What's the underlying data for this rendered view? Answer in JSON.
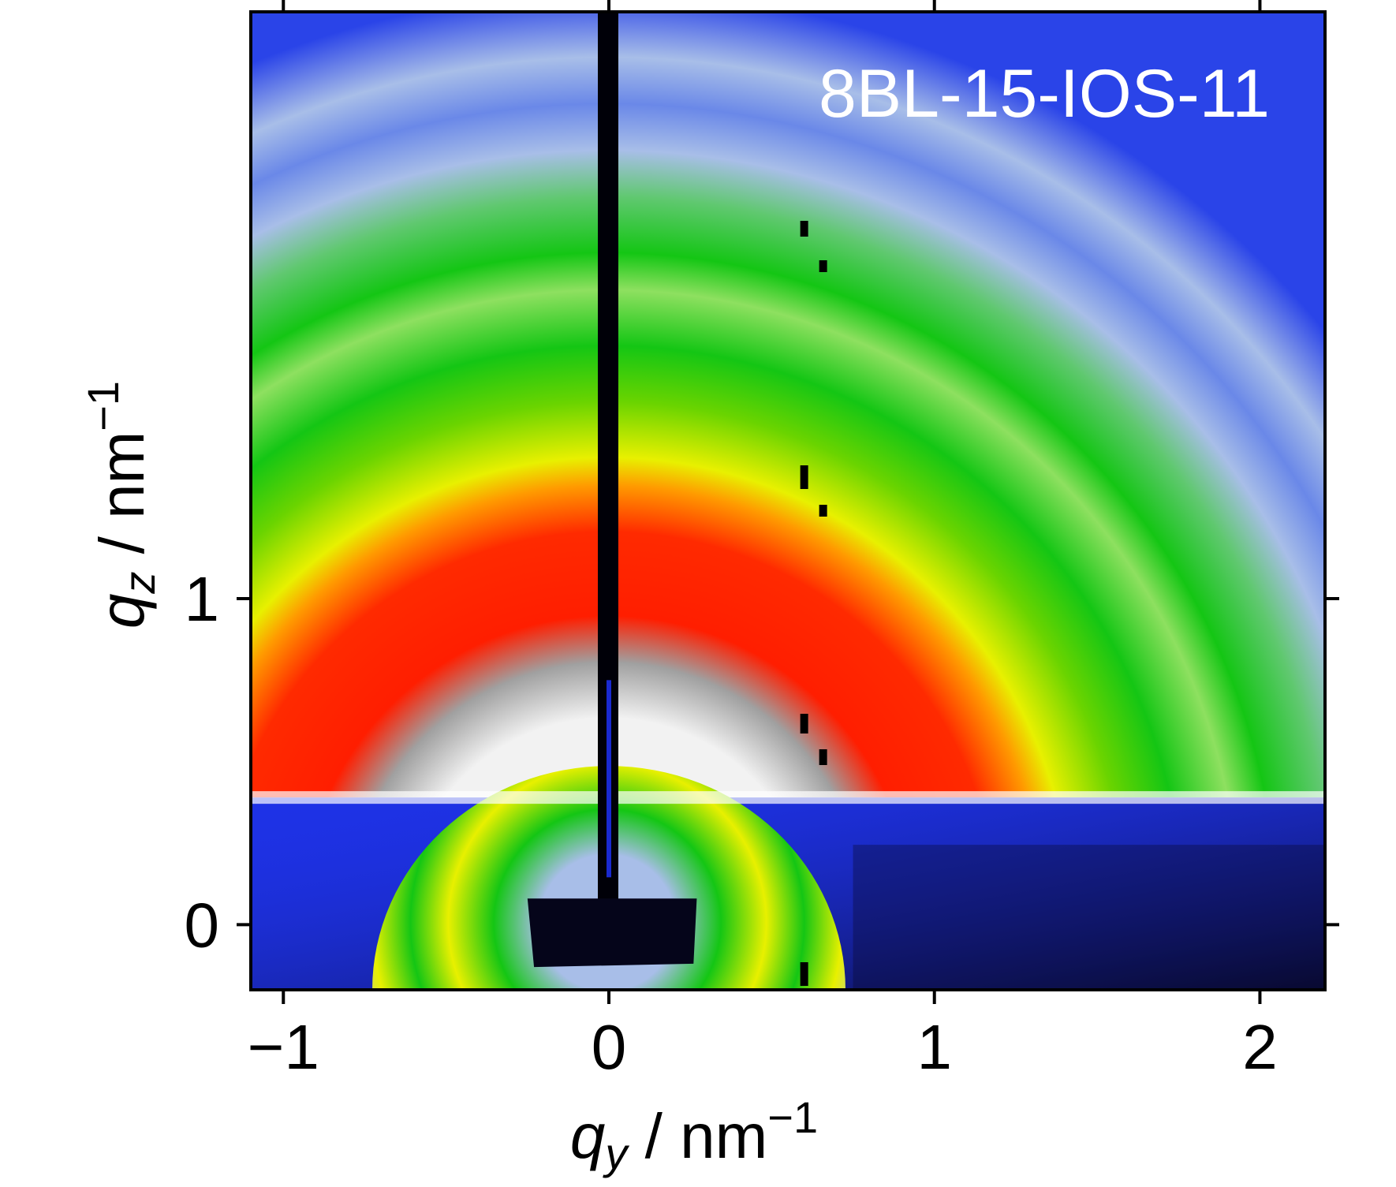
{
  "chart_data": {
    "type": "heatmap",
    "title": "",
    "sample_label": "8BL-15-IOS-11",
    "xlabel": {
      "var": "q",
      "sub": "y",
      "unit_sep": " / ",
      "unit": "nm",
      "exp": "−1"
    },
    "ylabel": {
      "var": "q",
      "sub": "z",
      "unit_sep": " / ",
      "unit": "nm",
      "exp": "−1"
    },
    "xlim": [
      -1.1,
      2.2
    ],
    "ylim": [
      -0.2,
      2.8
    ],
    "x_ticks": [
      {
        "value": -1,
        "label": "−1"
      },
      {
        "value": 0,
        "label": "0"
      },
      {
        "value": 1,
        "label": "1"
      },
      {
        "value": 2,
        "label": "2"
      }
    ],
    "y_ticks": [
      {
        "value": 0,
        "label": "0"
      },
      {
        "value": 1,
        "label": "1"
      }
    ],
    "colormap": [
      "#08082a",
      "#1e32e6",
      "#a8bee8",
      "#14c614",
      "#e8f000",
      "#ff1e00",
      "#f2f2f2"
    ],
    "scattering_rings_q": [
      0.9,
      1.35,
      1.85,
      2.25
    ],
    "horizon_qz": 0.39,
    "marker_qy": 0.6,
    "grid": false,
    "legend": "none"
  }
}
